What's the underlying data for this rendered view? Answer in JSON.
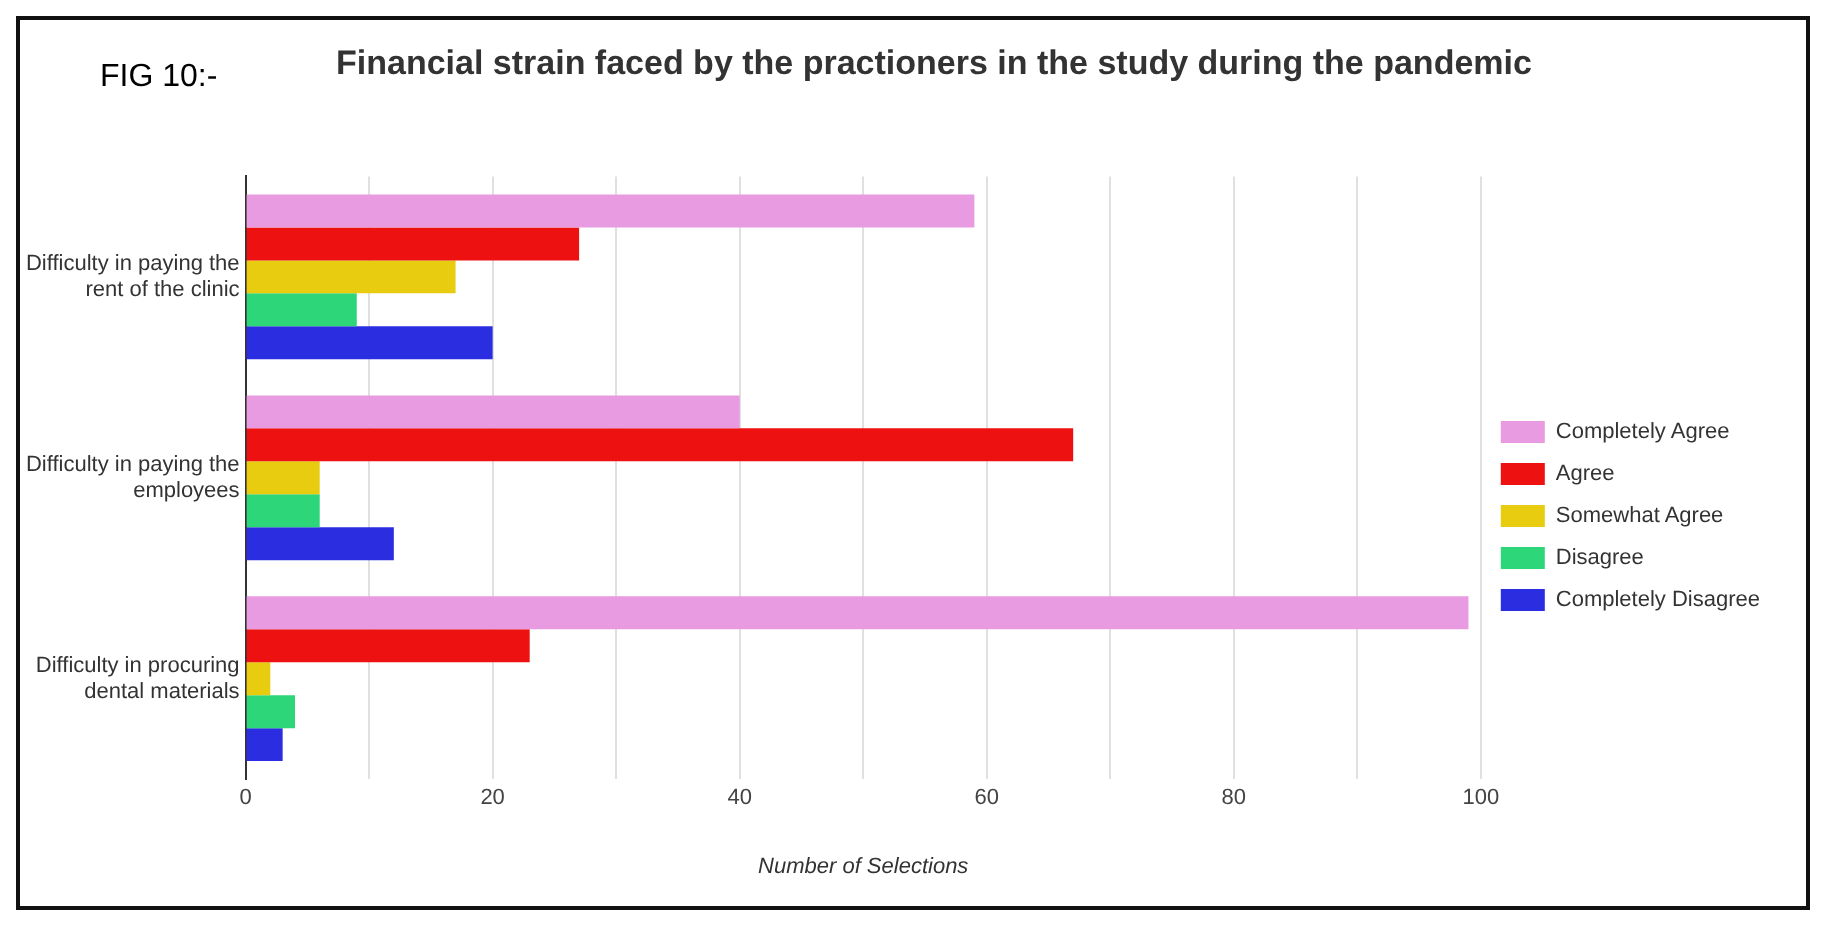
{
  "chart_data": {
    "type": "bar",
    "orientation": "horizontal",
    "title": "Financial strain faced by the practioners in the study during the pandemic",
    "annotations": [
      "FIG 10:-"
    ],
    "xlabel": "Number of Selections",
    "categories": [
      "Difficulty in paying the rent of the clinic",
      "Difficulty in paying the employees",
      "Difficulty in procuring dental materials"
    ],
    "series": [
      {
        "name": "Completely Agree",
        "color": "#e89be0",
        "values": [
          59,
          40,
          99
        ]
      },
      {
        "name": "Agree",
        "color": "#ee1111",
        "values": [
          27,
          67,
          23
        ]
      },
      {
        "name": "Somewhat Agree",
        "color": "#e8cc10",
        "values": [
          17,
          6,
          2
        ]
      },
      {
        "name": "Disagree",
        "color": "#2ed67a",
        "values": [
          9,
          6,
          4
        ]
      },
      {
        "name": "Completely Disagree",
        "color": "#2a2ee0",
        "values": [
          20,
          12,
          3
        ]
      }
    ],
    "xlim": [
      0,
      100
    ],
    "xticks": [
      0,
      {
        "value": 10,
        "label": null
      },
      20,
      {
        "value": 30,
        "label": null
      },
      40,
      {
        "value": 50,
        "label": null
      },
      60,
      {
        "value": 70,
        "label": null
      },
      80,
      {
        "value": 90,
        "label": null
      },
      100
    ],
    "grid": "x",
    "legend": "right"
  }
}
